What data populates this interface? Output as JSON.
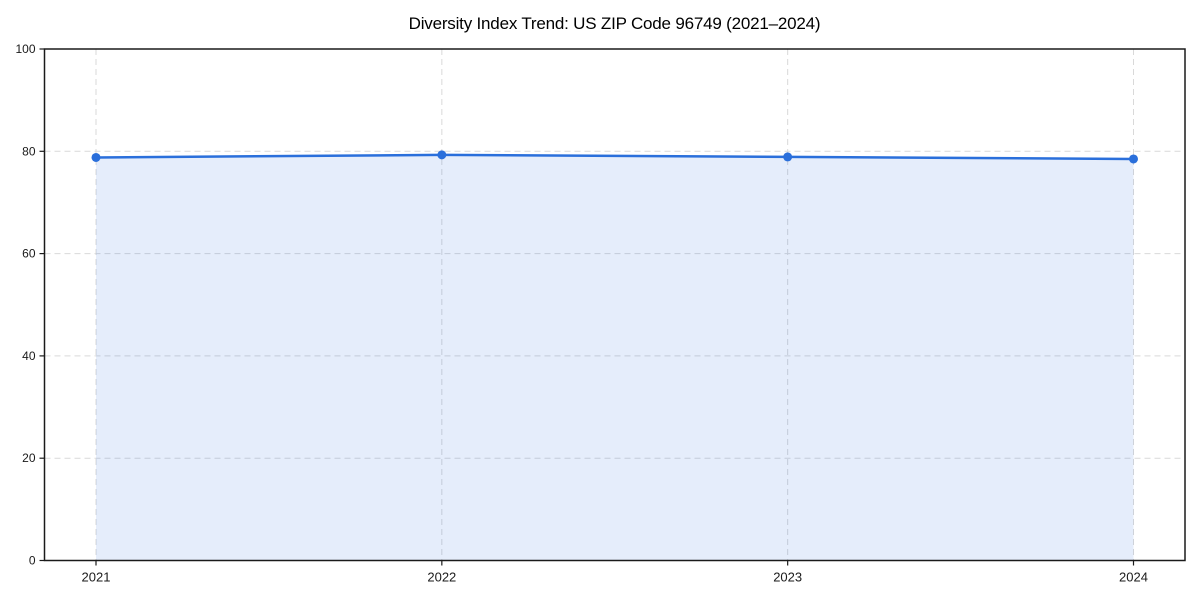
{
  "page": {
    "background": "#ffffff"
  },
  "chart_data": {
    "type": "line",
    "title": "Diversity Index Trend: US ZIP Code 96749 (2021–2024)",
    "x": [
      "2021",
      "2022",
      "2023",
      "2024"
    ],
    "series": [
      {
        "name": "Diversity Index",
        "values": [
          78.8,
          79.3,
          78.9,
          78.5
        ]
      }
    ],
    "xlabel": "",
    "ylabel": "",
    "ylim": [
      0,
      100
    ],
    "yticks": [
      0,
      20,
      40,
      60,
      80,
      100
    ],
    "grid": "dashed",
    "grid_axes": "both",
    "legend": "none",
    "area_fill": true,
    "marker": "circle",
    "colors": {
      "line": "#2a6fdb",
      "marker": "#2a6fdb",
      "fill": "#2a6fdb",
      "fill_opacity": 0.12,
      "grid": "#d9d9d9",
      "spine": "#1a1a1a",
      "tick_label": "#1a1a1a",
      "title": "#000000",
      "background": "#ffffff"
    }
  }
}
